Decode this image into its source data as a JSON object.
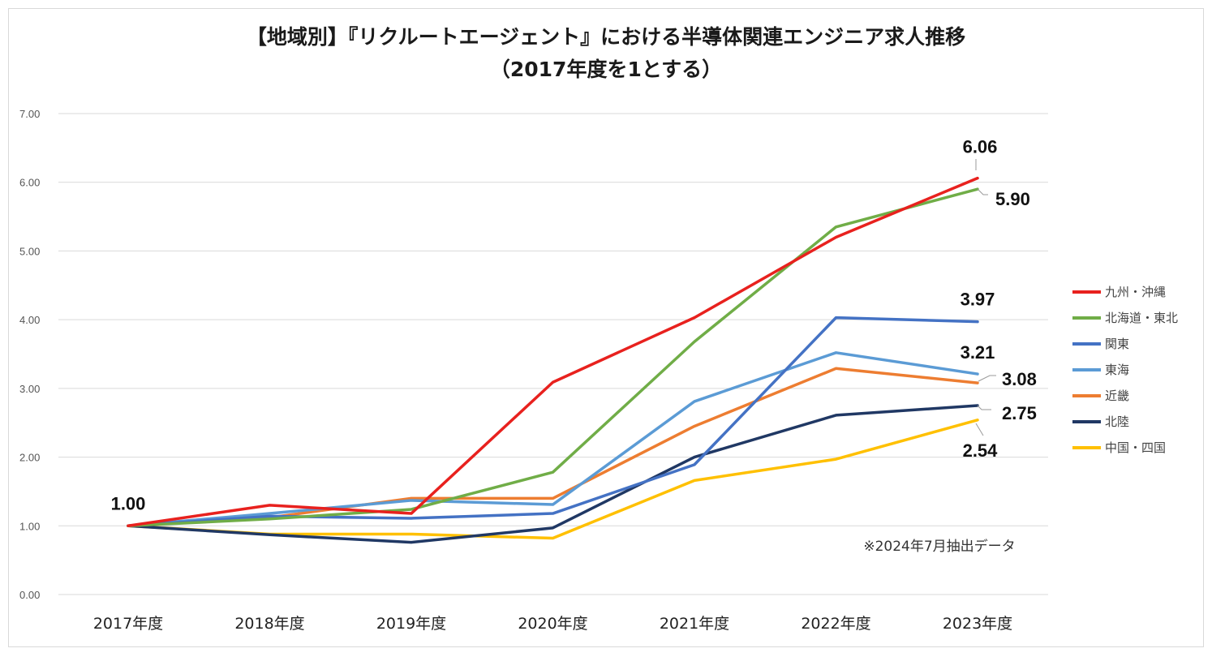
{
  "title_line1": "【地域別】『リクルートエージェント』における半導体関連エンジニア求人推移",
  "title_line2": "（2017年度を1とする）",
  "note": "※2024年7月抽出データ",
  "chart_data": {
    "type": "line",
    "title": "【地域別】『リクルートエージェント』における半導体関連エンジニア求人推移（2017年度を1とする）",
    "xlabel": "",
    "ylabel": "",
    "ylim": [
      0,
      7
    ],
    "yticks": [
      "0.00",
      "1.00",
      "2.00",
      "3.00",
      "4.00",
      "5.00",
      "6.00",
      "7.00"
    ],
    "grid": true,
    "legend_position": "right",
    "categories": [
      "2017年度",
      "2018年度",
      "2019年度",
      "2020年度",
      "2021年度",
      "2022年度",
      "2023年度"
    ],
    "series": [
      {
        "name": "九州・沖縄",
        "color": "#e8211e",
        "values": [
          1.0,
          1.3,
          1.18,
          3.09,
          4.03,
          5.2,
          6.06
        ]
      },
      {
        "name": "北海道・東北",
        "color": "#70ad47",
        "values": [
          1.0,
          1.1,
          1.24,
          1.78,
          3.68,
          5.35,
          5.9
        ]
      },
      {
        "name": "関東",
        "color": "#4472c4",
        "values": [
          1.0,
          1.14,
          1.11,
          1.18,
          1.89,
          4.03,
          3.97
        ]
      },
      {
        "name": "東海",
        "color": "#5b9bd5",
        "values": [
          1.0,
          1.18,
          1.37,
          1.31,
          2.81,
          3.52,
          3.21
        ]
      },
      {
        "name": "近畿",
        "color": "#ed7d31",
        "values": [
          1.0,
          1.12,
          1.4,
          1.4,
          2.45,
          3.29,
          3.08
        ]
      },
      {
        "name": "北陸",
        "color": "#203864",
        "values": [
          1.0,
          0.87,
          0.76,
          0.97,
          2.0,
          2.61,
          2.75
        ]
      },
      {
        "name": "中国・四国",
        "color": "#ffc000",
        "values": [
          1.0,
          0.88,
          0.88,
          0.82,
          1.66,
          1.97,
          2.54
        ]
      }
    ],
    "data_labels": [
      {
        "text": "1.00",
        "series": "九州・沖縄",
        "index": 0
      },
      {
        "text": "6.06",
        "series": "九州・沖縄",
        "index": 6
      },
      {
        "text": "5.90",
        "series": "北海道・東北",
        "index": 6
      },
      {
        "text": "3.97",
        "series": "関東",
        "index": 6
      },
      {
        "text": "3.21",
        "series": "東海",
        "index": 6
      },
      {
        "text": "3.08",
        "series": "近畿",
        "index": 6
      },
      {
        "text": "2.75",
        "series": "北陸",
        "index": 6
      },
      {
        "text": "2.54",
        "series": "中国・四国",
        "index": 6
      }
    ]
  }
}
